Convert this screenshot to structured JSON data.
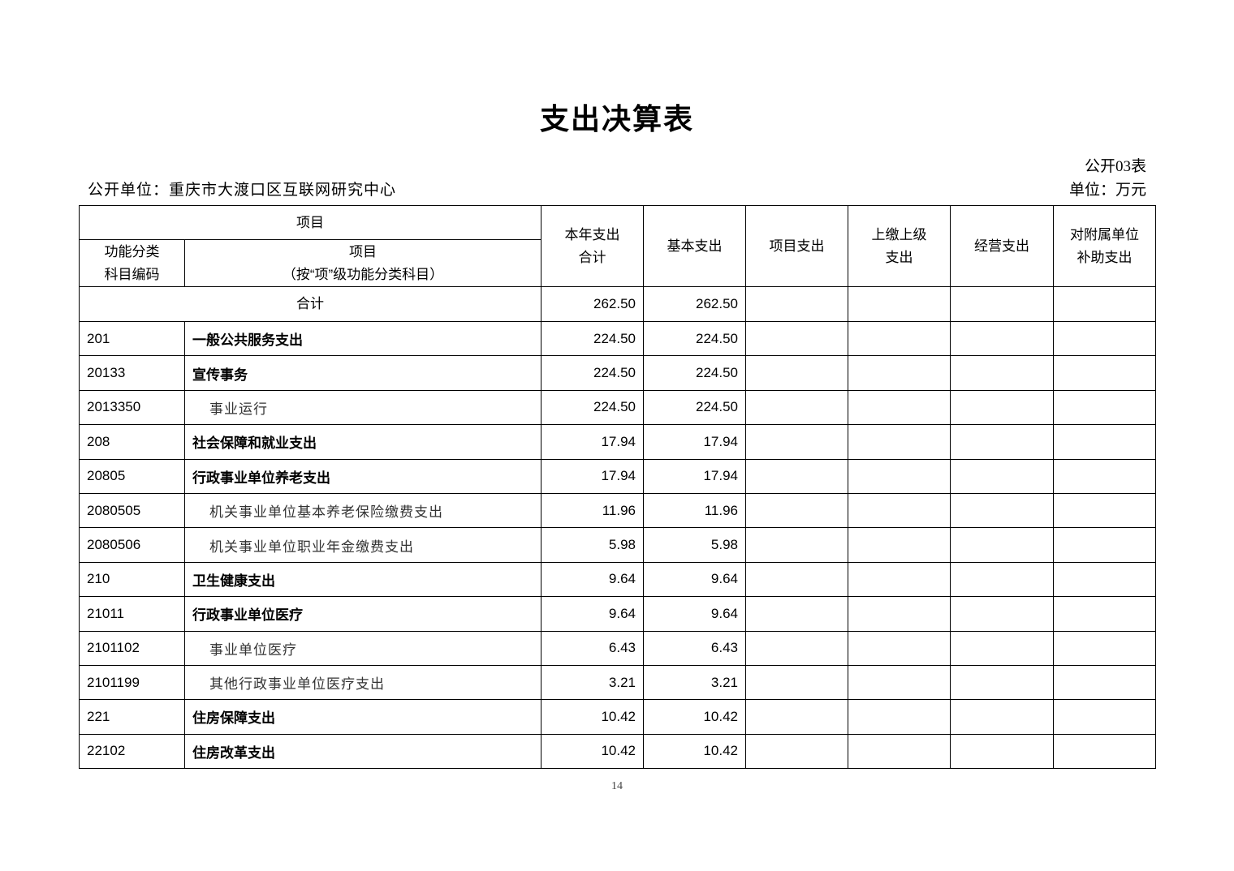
{
  "title": "支出决算表",
  "table_no": "公开03表",
  "unit_label": "公开单位：重庆市大渡口区互联网研究中心",
  "unit_measure": "单位：万元",
  "header": {
    "item_group": "项目",
    "code_col_1": "功能分类",
    "code_col_2": "科目编码",
    "name_col_1": "项目",
    "name_col_2": "（按“项”级功能分类科目）",
    "total_1": "本年支出",
    "total_2": "合计",
    "basic": "基本支出",
    "project": "项目支出",
    "upper_1": "上缴上级",
    "upper_2": "支出",
    "business": "经营支出",
    "subsidy_1": "对附属单位",
    "subsidy_2": "补助支出"
  },
  "sum_row": {
    "label": "合计",
    "total": "262.50",
    "basic": "262.50"
  },
  "rows": [
    {
      "code": "201",
      "name": "一般公共服务支出",
      "level": "category",
      "total": "224.50",
      "basic": "224.50"
    },
    {
      "code": "20133",
      "name": "宣传事务",
      "level": "category",
      "total": "224.50",
      "basic": "224.50"
    },
    {
      "code": "2013350",
      "name": "事业运行",
      "level": "item",
      "total": "224.50",
      "basic": "224.50"
    },
    {
      "code": "208",
      "name": "社会保障和就业支出",
      "level": "category",
      "total": "17.94",
      "basic": "17.94"
    },
    {
      "code": "20805",
      "name": "行政事业单位养老支出",
      "level": "category",
      "total": "17.94",
      "basic": "17.94"
    },
    {
      "code": "2080505",
      "name": "机关事业单位基本养老保险缴费支出",
      "level": "item",
      "total": "11.96",
      "basic": "11.96"
    },
    {
      "code": "2080506",
      "name": "机关事业单位职业年金缴费支出",
      "level": "item",
      "total": "5.98",
      "basic": "5.98"
    },
    {
      "code": "210",
      "name": "卫生健康支出",
      "level": "category",
      "total": "9.64",
      "basic": "9.64"
    },
    {
      "code": "21011",
      "name": "行政事业单位医疗",
      "level": "category",
      "total": "9.64",
      "basic": "9.64"
    },
    {
      "code": "2101102",
      "name": "事业单位医疗",
      "level": "item",
      "total": "6.43",
      "basic": "6.43"
    },
    {
      "code": "2101199",
      "name": "其他行政事业单位医疗支出",
      "level": "item",
      "total": "3.21",
      "basic": "3.21"
    },
    {
      "code": "221",
      "name": "住房保障支出",
      "level": "category",
      "total": "10.42",
      "basic": "10.42"
    },
    {
      "code": "22102",
      "name": "住房改革支出",
      "level": "category",
      "total": "10.42",
      "basic": "10.42"
    }
  ],
  "page_number": "14"
}
